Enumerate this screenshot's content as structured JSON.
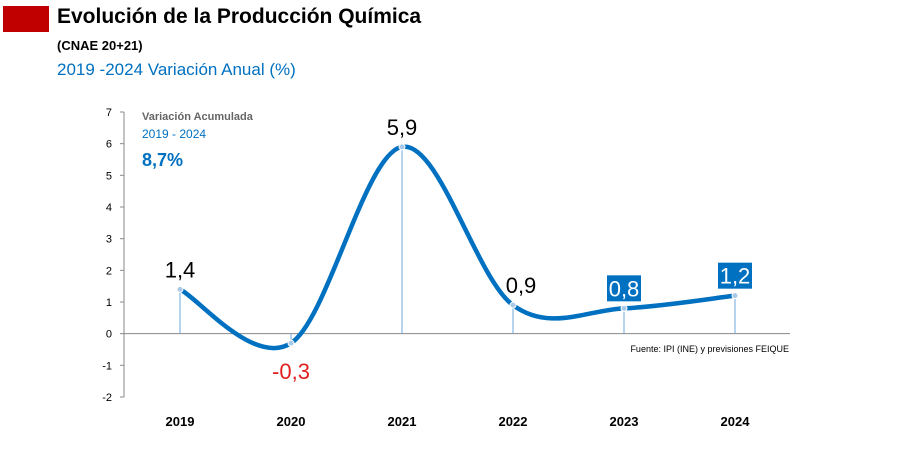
{
  "header": {
    "title": "Evolución de la Producción Química",
    "subtitle": "(CNAE 20+21)",
    "period_label": "2019 -2024 Variación Anual (%)"
  },
  "colors": {
    "brand_red": "#c00000",
    "line_blue": "#0070c0",
    "label_red": "#e02020",
    "axis": "#888888"
  },
  "chart_data": {
    "type": "line",
    "categories": [
      "2019",
      "2020",
      "2021",
      "2022",
      "2023",
      "2024"
    ],
    "values": [
      1.4,
      -0.3,
      5.9,
      0.9,
      0.8,
      1.2
    ],
    "value_labels": [
      "1,4",
      "-0,3",
      "5,9",
      "0,9",
      "0,8",
      "1,2"
    ],
    "highlighted": [
      false,
      false,
      false,
      false,
      true,
      true
    ],
    "negative_label_color": "red",
    "ylim": [
      -2,
      7
    ],
    "yticks": [
      "-2",
      "-1",
      "0",
      "1",
      "2",
      "3",
      "4",
      "5",
      "6",
      "7"
    ],
    "smooth": true,
    "grid": false,
    "inset": {
      "title": "Variación Acumulada",
      "period": "2019 - 2024",
      "value": "8,7%"
    },
    "source": "Fuente: IPI (INE) y previsiones FEIQUE"
  }
}
